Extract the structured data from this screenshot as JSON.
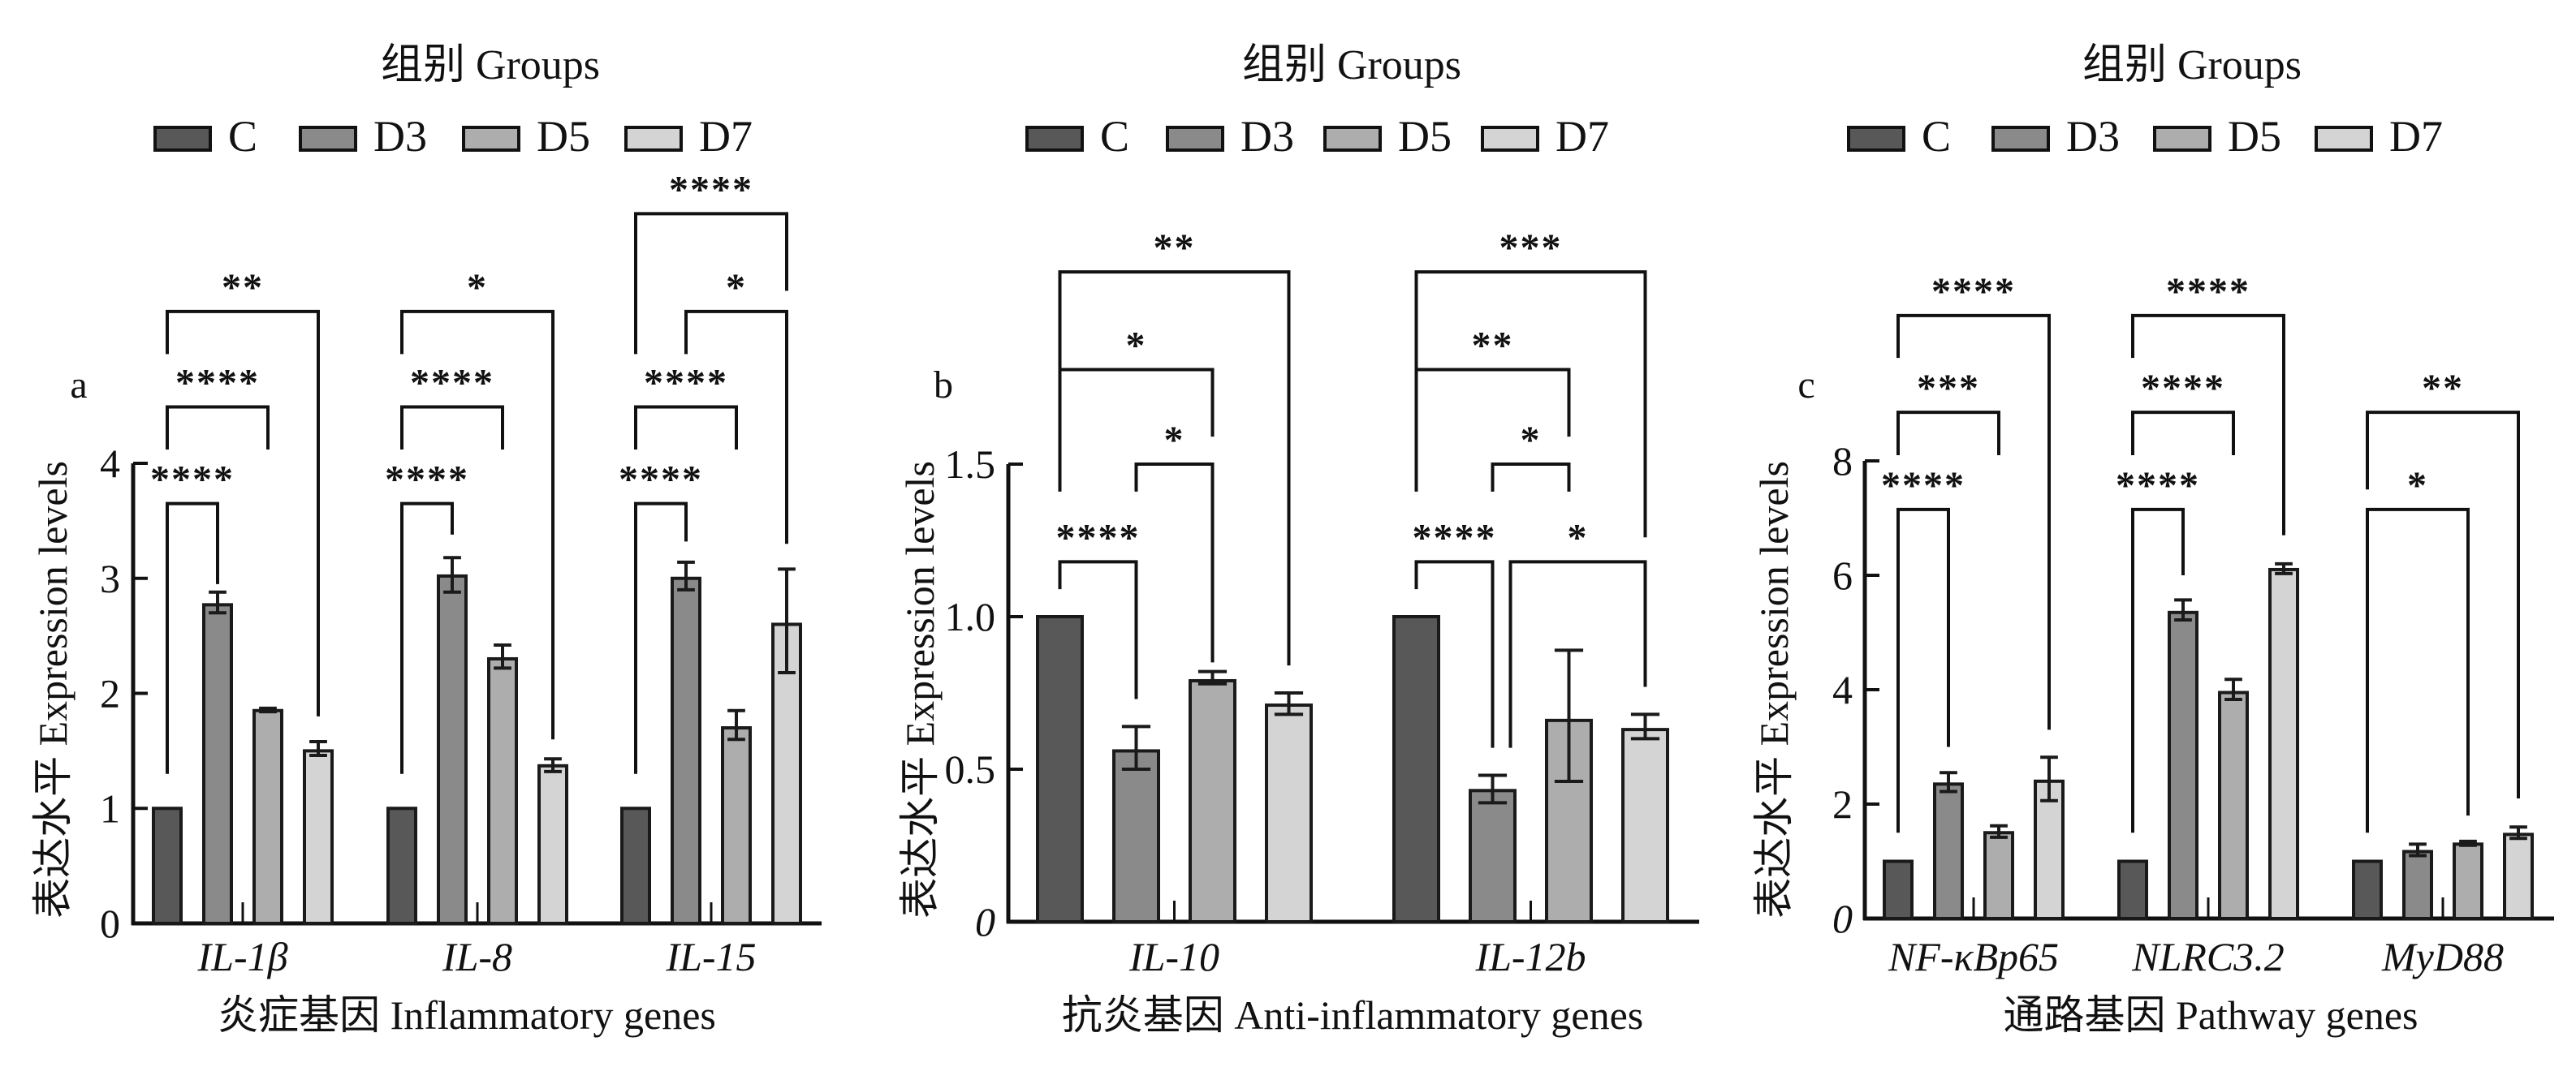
{
  "chart_data": [
    {
      "type": "bar",
      "panel_letter": "a",
      "legend_title": "组别 Groups",
      "series_names": [
        "C",
        "D3",
        "D5",
        "D7"
      ],
      "series_colors": [
        "#585858",
        "#8a8a8a",
        "#adadad",
        "#d4d4d4"
      ],
      "categories": [
        "IL-1β",
        "IL-8",
        "IL-15"
      ],
      "series": [
        {
          "name": "C",
          "values": [
            1.0,
            1.0,
            1.0
          ],
          "err_low": [
            1.0,
            1.0,
            1.0
          ],
          "err_high": [
            1.0,
            1.0,
            1.0
          ]
        },
        {
          "name": "D3",
          "values": [
            2.77,
            3.02,
            3.0
          ],
          "err_low": [
            2.7,
            2.88,
            2.9
          ],
          "err_high": [
            2.88,
            3.18,
            3.14
          ]
        },
        {
          "name": "D5",
          "values": [
            1.85,
            2.3,
            1.7
          ],
          "err_low": [
            1.84,
            2.22,
            1.6
          ],
          "err_high": [
            1.87,
            2.42,
            1.85
          ]
        },
        {
          "name": "D7",
          "values": [
            1.5,
            1.37,
            2.6
          ],
          "err_low": [
            1.46,
            1.32,
            2.18
          ],
          "err_high": [
            1.58,
            1.43,
            3.08
          ]
        }
      ],
      "title": "",
      "xlabel": "炎症基因 Inflammatory genes",
      "ylabel": "表达水平 Expression levels",
      "ylim": [
        0,
        4
      ],
      "yticks": [
        "0",
        "1",
        "2",
        "3",
        "4"
      ],
      "significance": [
        {
          "category": "IL-1β",
          "from": "C",
          "to": "D3",
          "label": "****",
          "height": 3.65,
          "left_end": 1.3,
          "right_end": 2.95
        },
        {
          "category": "IL-1β",
          "from": "C",
          "to": "D5",
          "label": "****",
          "height": 4.49,
          "left_end": 4.12,
          "right_end": 4.12
        },
        {
          "category": "IL-1β",
          "from": "C",
          "to": "D7",
          "label": "**",
          "height": 5.32,
          "left_end": 4.95,
          "right_end": 1.8
        },
        {
          "category": "IL-8",
          "from": "C",
          "to": "D3",
          "label": "****",
          "height": 3.65,
          "left_end": 1.3,
          "right_end": 3.38
        },
        {
          "category": "IL-8",
          "from": "C",
          "to": "D5",
          "label": "****",
          "height": 4.49,
          "left_end": 4.12,
          "right_end": 4.12
        },
        {
          "category": "IL-8",
          "from": "C",
          "to": "D7",
          "label": "*",
          "height": 5.32,
          "left_end": 4.95,
          "right_end": 1.6
        },
        {
          "category": "IL-15",
          "from": "C",
          "to": "D3",
          "label": "****",
          "height": 3.65,
          "left_end": 1.3,
          "right_end": 3.32
        },
        {
          "category": "IL-15",
          "from": "C",
          "to": "D5",
          "label": "****",
          "height": 4.49,
          "left_end": 4.12,
          "right_end": 4.12
        },
        {
          "category": "IL-15",
          "from": "D3",
          "to": "D7",
          "label": "*",
          "height": 5.32,
          "left_end": 4.95,
          "right_end": 3.3
        },
        {
          "category": "IL-15",
          "from": "C",
          "to": "D7",
          "label": "****",
          "height": 6.17,
          "left_end": 4.95,
          "right_end": 5.5
        }
      ]
    },
    {
      "type": "bar",
      "panel_letter": "b",
      "legend_title": "组别 Groups",
      "series_names": [
        "C",
        "D3",
        "D5",
        "D7"
      ],
      "series_colors": [
        "#585858",
        "#8a8a8a",
        "#adadad",
        "#d4d4d4"
      ],
      "categories": [
        "IL-10",
        "IL-12b"
      ],
      "series": [
        {
          "name": "C",
          "values": [
            1.0,
            1.0
          ],
          "err_low": [
            1.0,
            1.0
          ],
          "err_high": [
            1.0,
            1.0
          ]
        },
        {
          "name": "D3",
          "values": [
            0.56,
            0.43
          ],
          "err_low": [
            0.5,
            0.39
          ],
          "err_high": [
            0.64,
            0.48
          ]
        },
        {
          "name": "D5",
          "values": [
            0.79,
            0.66
          ],
          "err_low": [
            0.78,
            0.46
          ],
          "err_high": [
            0.82,
            0.89
          ]
        },
        {
          "name": "D7",
          "values": [
            0.71,
            0.63
          ],
          "err_low": [
            0.68,
            0.6
          ],
          "err_high": [
            0.75,
            0.68
          ]
        }
      ],
      "title": "",
      "xlabel": "抗炎基因 Anti-inflammatory genes",
      "ylabel": "表达水平 Expression levels",
      "ylim": [
        0,
        1.5
      ],
      "yticks": [
        "0",
        "0.5",
        "1.0",
        "1.5"
      ],
      "significance": [
        {
          "category": "IL-10",
          "from": "C",
          "to": "D3",
          "label": "****",
          "height": 1.18,
          "left_end": 1.09,
          "right_end": 0.73
        },
        {
          "category": "IL-10",
          "from": "D3",
          "to": "D5",
          "label": "*",
          "height": 1.5,
          "left_end": 1.41,
          "right_end": 0.85
        },
        {
          "category": "IL-10",
          "from": "C",
          "to": "D5",
          "label": "*",
          "height": 1.81,
          "left_end": 1.41,
          "right_end": 1.59
        },
        {
          "category": "IL-10",
          "from": "C",
          "to": "D7",
          "label": "**",
          "height": 2.13,
          "left_end": 1.77,
          "right_end": 0.84
        },
        {
          "category": "IL-12b",
          "from": "C",
          "to": "D3",
          "label": "****",
          "height": 1.18,
          "left_end": 1.09,
          "right_end": 0.57
        },
        {
          "category": "IL-12b",
          "from": "D3",
          "to": "D7",
          "label": "*",
          "height": 1.18,
          "left_end": 0.57,
          "right_end": 0.77
        },
        {
          "category": "IL-12b",
          "from": "D3",
          "to": "D5",
          "label": "*",
          "height": 1.5,
          "left_end": 1.41,
          "right_end": 1.41
        },
        {
          "category": "IL-12b",
          "from": "C",
          "to": "D5",
          "label": "**",
          "height": 1.81,
          "left_end": 1.41,
          "right_end": 1.59
        },
        {
          "category": "IL-12b",
          "from": "C",
          "to": "D7",
          "label": "***",
          "height": 2.13,
          "left_end": 1.77,
          "right_end": 1.26
        }
      ]
    },
    {
      "type": "bar",
      "panel_letter": "c",
      "legend_title": "组别 Groups",
      "series_names": [
        "C",
        "D3",
        "D5",
        "D7"
      ],
      "series_colors": [
        "#585858",
        "#8a8a8a",
        "#adadad",
        "#d4d4d4"
      ],
      "categories": [
        "NF-κBp65",
        "NLRC3.2",
        "MyD88"
      ],
      "series": [
        {
          "name": "C",
          "values": [
            1.0,
            1.0,
            1.0
          ],
          "err_low": [
            1.0,
            1.0,
            1.0
          ],
          "err_high": [
            1.0,
            1.0,
            1.0
          ]
        },
        {
          "name": "D3",
          "values": [
            2.35,
            5.35,
            1.17
          ],
          "err_low": [
            2.22,
            5.22,
            1.1
          ],
          "err_high": [
            2.55,
            5.57,
            1.3
          ]
        },
        {
          "name": "D5",
          "values": [
            1.5,
            3.95,
            1.3
          ],
          "err_low": [
            1.42,
            3.83,
            1.28
          ],
          "err_high": [
            1.62,
            4.18,
            1.35
          ]
        },
        {
          "name": "D7",
          "values": [
            2.4,
            6.1,
            1.47
          ],
          "err_low": [
            2.06,
            6.03,
            1.4
          ],
          "err_high": [
            2.82,
            6.2,
            1.6
          ]
        }
      ],
      "title": "",
      "xlabel": "通路基因 Pathway genes",
      "ylabel": "表达水平 Expression levels",
      "ylim": [
        0,
        8
      ],
      "yticks": [
        "0",
        "2",
        "4",
        "6",
        "8"
      ],
      "significance": [
        {
          "category": "NF-κBp65",
          "from": "C",
          "to": "D3",
          "label": "****",
          "height": 7.15,
          "left_end": 1.5,
          "right_end": 3.0
        },
        {
          "category": "NF-κBp65",
          "from": "C",
          "to": "D5",
          "label": "***",
          "height": 8.85,
          "left_end": 8.1,
          "right_end": 8.1
        },
        {
          "category": "NF-κBp65",
          "from": "C",
          "to": "D7",
          "label": "****",
          "height": 10.54,
          "left_end": 9.8,
          "right_end": 3.3
        },
        {
          "category": "NLRC3.2",
          "from": "C",
          "to": "D3",
          "label": "****",
          "height": 7.15,
          "left_end": 1.5,
          "right_end": 6.0
        },
        {
          "category": "NLRC3.2",
          "from": "C",
          "to": "D5",
          "label": "****",
          "height": 8.85,
          "left_end": 8.1,
          "right_end": 8.1
        },
        {
          "category": "NLRC3.2",
          "from": "C",
          "to": "D7",
          "label": "****",
          "height": 10.54,
          "left_end": 9.8,
          "right_end": 6.7
        },
        {
          "category": "MyD88",
          "from": "C",
          "to": "D5",
          "label": "*",
          "height": 7.15,
          "left_end": 1.5,
          "right_end": 1.8
        },
        {
          "category": "MyD88",
          "from": "C",
          "to": "D7",
          "label": "**",
          "height": 8.85,
          "left_end": 7.5,
          "right_end": 2.1
        }
      ]
    }
  ]
}
